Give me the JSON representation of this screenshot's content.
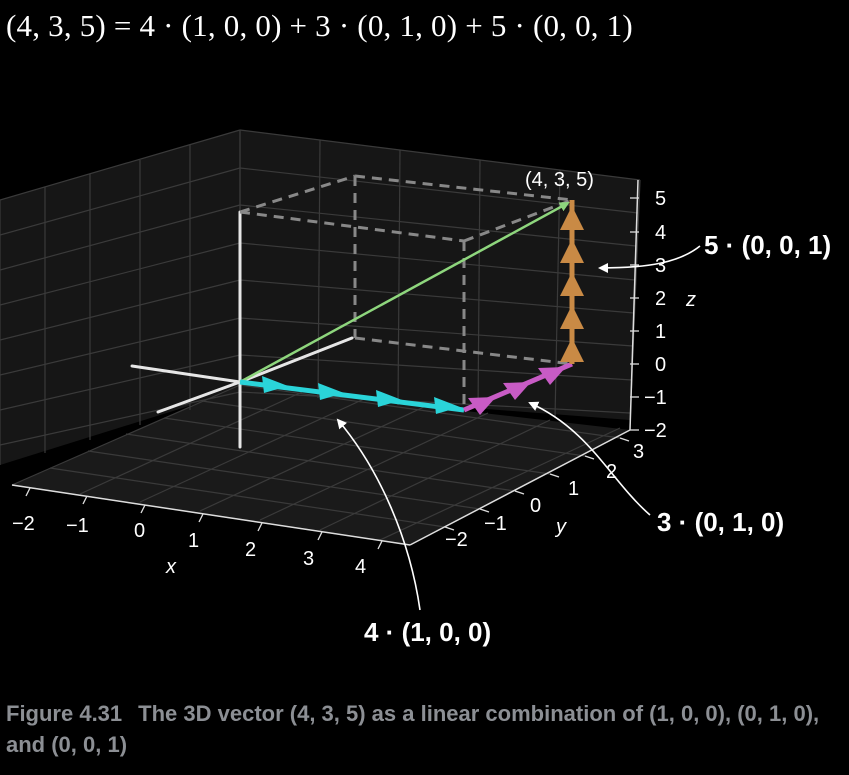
{
  "equation": "(4, 3, 5) = 4 · (1, 0, 0) + 3 · (0, 1, 0) + 5 · (0, 0, 1)",
  "plot": {
    "point_label": "(4, 3, 5)",
    "axes": {
      "x": {
        "label": "x",
        "ticks": [
          "−2",
          "−1",
          "0",
          "1",
          "2",
          "3",
          "4"
        ]
      },
      "y": {
        "label": "y",
        "ticks": [
          "−2",
          "−1",
          "0",
          "1",
          "2",
          "3"
        ]
      },
      "z": {
        "label": "z",
        "ticks": [
          "5",
          "4",
          "3",
          "2",
          "1",
          "0",
          "−1",
          "−2"
        ]
      }
    },
    "colors": {
      "x_component": "#2ad4d9",
      "y_component": "#c85bc5",
      "z_component": "#c98a45",
      "result_vector": "#8ed67d",
      "dashed_box": "#888888"
    }
  },
  "callouts": {
    "z_component": "5 · (0, 0, 1)",
    "y_component": "3 · (0, 1, 0)",
    "x_component": "4 · (1, 0, 0)"
  },
  "caption": {
    "number": "Figure 4.31",
    "text": "The 3D vector (4, 3, 5) as a linear combination of (1, 0, 0), (0, 1, 0), and (0, 0, 1)"
  }
}
